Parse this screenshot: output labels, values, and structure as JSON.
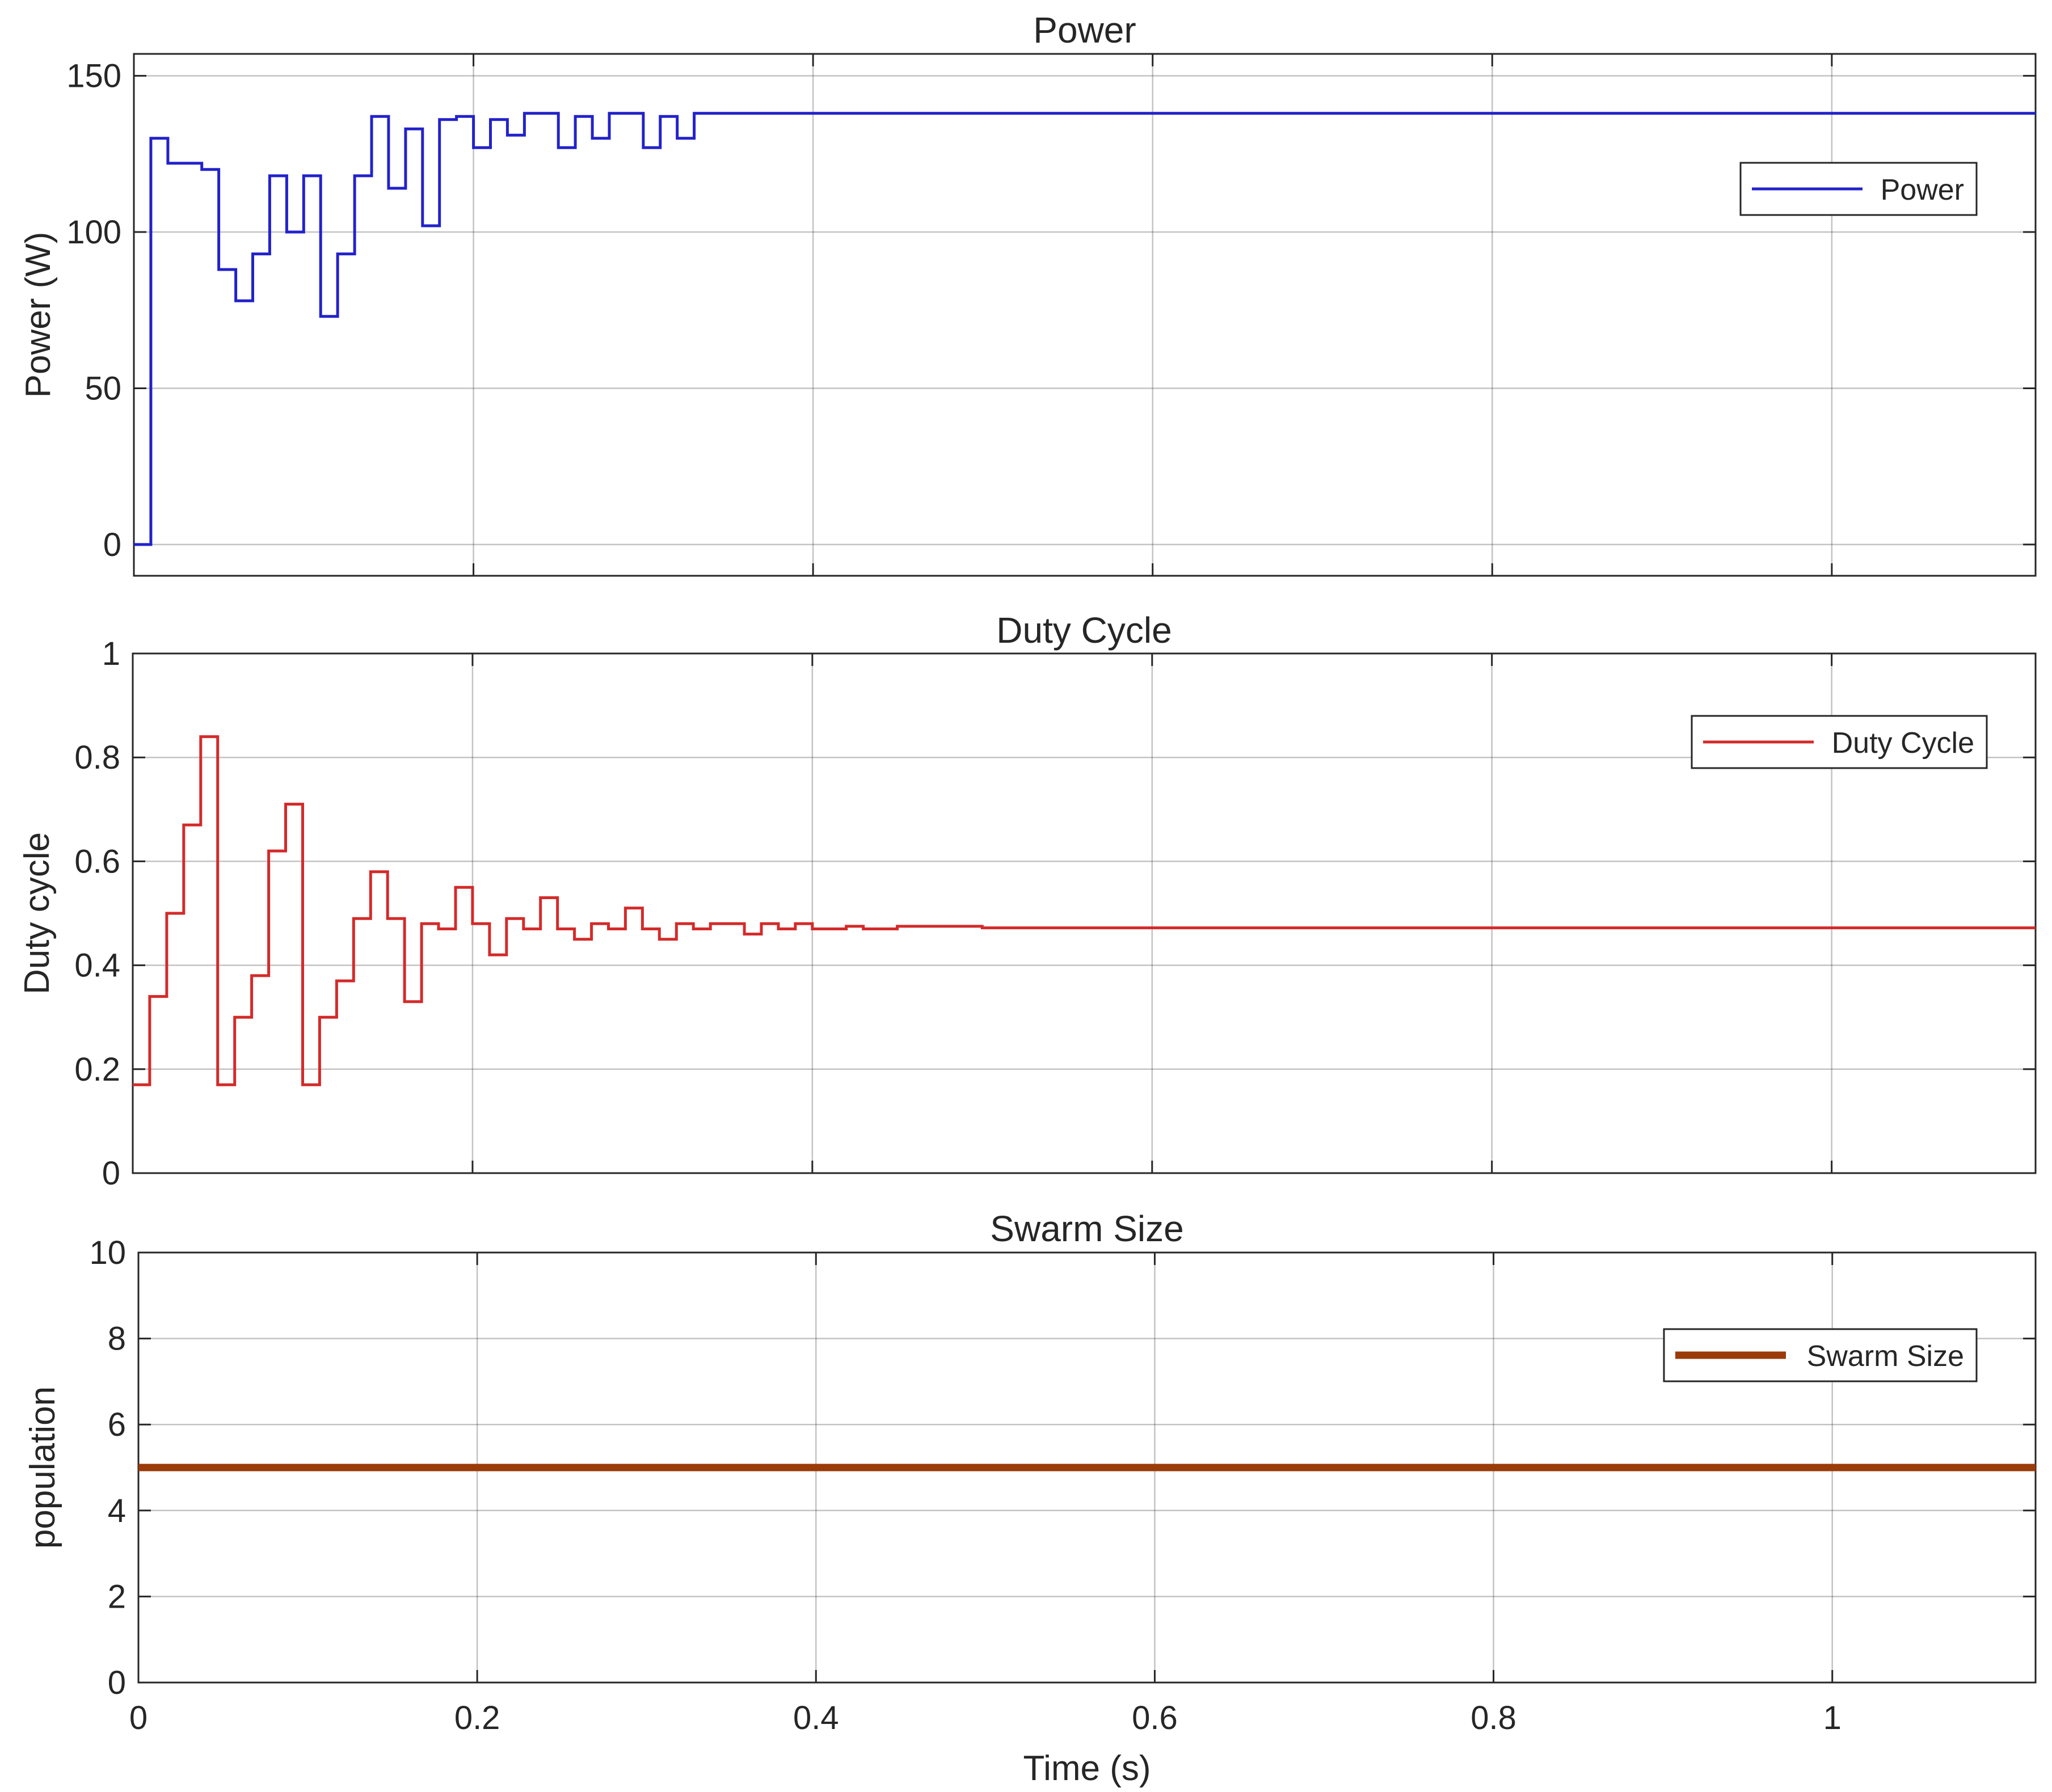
{
  "chart_data": [
    {
      "type": "line",
      "title": "Power",
      "ylabel": "Power (W)",
      "xlabel": "",
      "xlim": [
        0,
        1.12
      ],
      "ylim": [
        -10,
        157
      ],
      "xticks": [
        0,
        0.2,
        0.4,
        0.6,
        0.8,
        1
      ],
      "xtick_labels": [],
      "yticks": [
        0,
        50,
        100,
        150
      ],
      "ytick_labels": [
        "0",
        "50",
        "100",
        "150"
      ],
      "grid": true,
      "legend_position": "top-right",
      "series": [
        {
          "name": "Power",
          "color": "#2222cc",
          "line_width": 5,
          "step": true,
          "x": [
            0,
            0.01,
            0.02,
            0.03,
            0.04,
            0.05,
            0.06,
            0.07,
            0.08,
            0.09,
            0.1,
            0.11,
            0.12,
            0.13,
            0.14,
            0.15,
            0.16,
            0.17,
            0.18,
            0.19,
            0.2,
            0.21,
            0.22,
            0.23,
            0.24,
            0.25,
            0.26,
            0.27,
            0.28,
            0.29,
            0.3,
            0.31,
            0.32,
            0.33,
            1.12
          ],
          "y": [
            0,
            130,
            122,
            122,
            120,
            88,
            78,
            93,
            118,
            100,
            118,
            73,
            93,
            118,
            137,
            114,
            133,
            102,
            136,
            137,
            127,
            136,
            131,
            138,
            138,
            127,
            137,
            130,
            138,
            138,
            127,
            137,
            130,
            138,
            138
          ]
        }
      ]
    },
    {
      "type": "line",
      "title": "Duty Cycle",
      "ylabel": "Duty cycle",
      "xlabel": "",
      "xlim": [
        0,
        1.12
      ],
      "ylim": [
        0,
        1
      ],
      "xticks": [
        0,
        0.2,
        0.4,
        0.6,
        0.8,
        1
      ],
      "xtick_labels": [],
      "yticks": [
        0,
        0.2,
        0.4,
        0.6,
        0.8,
        1
      ],
      "ytick_labels": [
        "0",
        "0.2",
        "0.4",
        "0.6",
        "0.8",
        "1"
      ],
      "grid": true,
      "legend_position": "top-right",
      "series": [
        {
          "name": "Duty Cycle",
          "color": "#d42a2a",
          "line_width": 5,
          "step": true,
          "x": [
            0,
            0.01,
            0.02,
            0.03,
            0.04,
            0.05,
            0.06,
            0.07,
            0.08,
            0.09,
            0.1,
            0.11,
            0.12,
            0.13,
            0.14,
            0.15,
            0.16,
            0.17,
            0.18,
            0.19,
            0.2,
            0.21,
            0.22,
            0.23,
            0.24,
            0.25,
            0.26,
            0.27,
            0.28,
            0.29,
            0.3,
            0.31,
            0.32,
            0.33,
            0.34,
            0.36,
            0.37,
            0.38,
            0.39,
            0.4,
            0.42,
            0.43,
            0.45,
            0.5,
            1.12
          ],
          "y": [
            0.17,
            0.34,
            0.5,
            0.67,
            0.84,
            0.17,
            0.3,
            0.38,
            0.62,
            0.71,
            0.17,
            0.3,
            0.37,
            0.49,
            0.58,
            0.49,
            0.33,
            0.48,
            0.47,
            0.55,
            0.48,
            0.42,
            0.49,
            0.47,
            0.53,
            0.47,
            0.45,
            0.48,
            0.47,
            0.51,
            0.47,
            0.45,
            0.48,
            0.47,
            0.48,
            0.46,
            0.48,
            0.47,
            0.48,
            0.47,
            0.475,
            0.47,
            0.475,
            0.472,
            0.472
          ]
        }
      ]
    },
    {
      "type": "line",
      "title": "Swarm Size",
      "ylabel": "population",
      "xlabel": "Time (s)",
      "xlim": [
        0,
        1.12
      ],
      "ylim": [
        0,
        10
      ],
      "xticks": [
        0,
        0.2,
        0.4,
        0.6,
        0.8,
        1
      ],
      "xtick_labels": [
        "0",
        "0.2",
        "0.4",
        "0.6",
        "0.8",
        "1"
      ],
      "yticks": [
        0,
        2,
        4,
        6,
        8,
        10
      ],
      "ytick_labels": [
        "0",
        "2",
        "4",
        "6",
        "8",
        "10"
      ],
      "grid": true,
      "legend_position": "top-right",
      "series": [
        {
          "name": "Swarm Size",
          "color": "#9b3b0a",
          "line_width": 13,
          "step": false,
          "x": [
            0,
            1.12
          ],
          "y": [
            5,
            5
          ]
        }
      ]
    }
  ]
}
